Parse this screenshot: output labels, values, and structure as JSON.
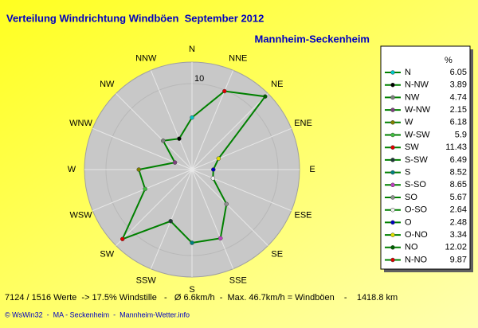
{
  "chart_data": {
    "type": "radar",
    "title": "Verteilung Windrichtung Windböen  September 2012",
    "subtitle": "Mannheim-Seckenheim",
    "direction": "counterclockwise",
    "rlim": [
      0,
      12.5
    ],
    "rticks": [
      10
    ],
    "line_color": "#008000",
    "legend_header": "%",
    "points": [
      {
        "name": "N",
        "axis_label": "N",
        "value": 6.05,
        "color": "#00c8c8"
      },
      {
        "name": "N-NW",
        "axis_label": "NNW",
        "value": 3.89,
        "color": "#000000"
      },
      {
        "name": "NW",
        "axis_label": "NW",
        "value": 4.74,
        "color": "#808080"
      },
      {
        "name": "W-NW",
        "axis_label": "WNW",
        "value": 2.15,
        "color": "#804080"
      },
      {
        "name": "W",
        "axis_label": "W",
        "value": 6.18,
        "color": "#808000"
      },
      {
        "name": "W-SW",
        "axis_label": "WSW",
        "value": 5.9,
        "color": "#40c040"
      },
      {
        "name": "SW",
        "axis_label": "SW",
        "value": 11.43,
        "color": "#e00000"
      },
      {
        "name": "S-SW",
        "axis_label": "SSW",
        "value": 6.49,
        "color": "#203838"
      },
      {
        "name": "S",
        "axis_label": "S",
        "value": 8.52,
        "color": "#008080"
      },
      {
        "name": "S-SO",
        "axis_label": "SSE",
        "value": 8.65,
        "color": "#c040c0"
      },
      {
        "name": "SO",
        "axis_label": "SE",
        "value": 5.67,
        "color": "#909090"
      },
      {
        "name": "O-SO",
        "axis_label": "ESE",
        "value": 2.64,
        "color": "#f0f0f0"
      },
      {
        "name": "O",
        "axis_label": "E",
        "value": 2.48,
        "color": "#0000c0"
      },
      {
        "name": "O-NO",
        "axis_label": "ENE",
        "value": 3.34,
        "color": "#e0e000"
      },
      {
        "name": "NO",
        "axis_label": "NE",
        "value": 12.02,
        "color": "#006000"
      },
      {
        "name": "N-NO",
        "axis_label": "NNE",
        "value": 9.87,
        "color": "#e00000"
      }
    ],
    "footer": "7124 / 1516 Werte  -> 17.5% Windstille   -   Ø 6.6km/h  -  Max. 46.7km/h = Windböen    -    1418.8 km",
    "credit": "© WsWin32  -  MA - Seckenheim  -  Mannheim-Wetter.info"
  }
}
